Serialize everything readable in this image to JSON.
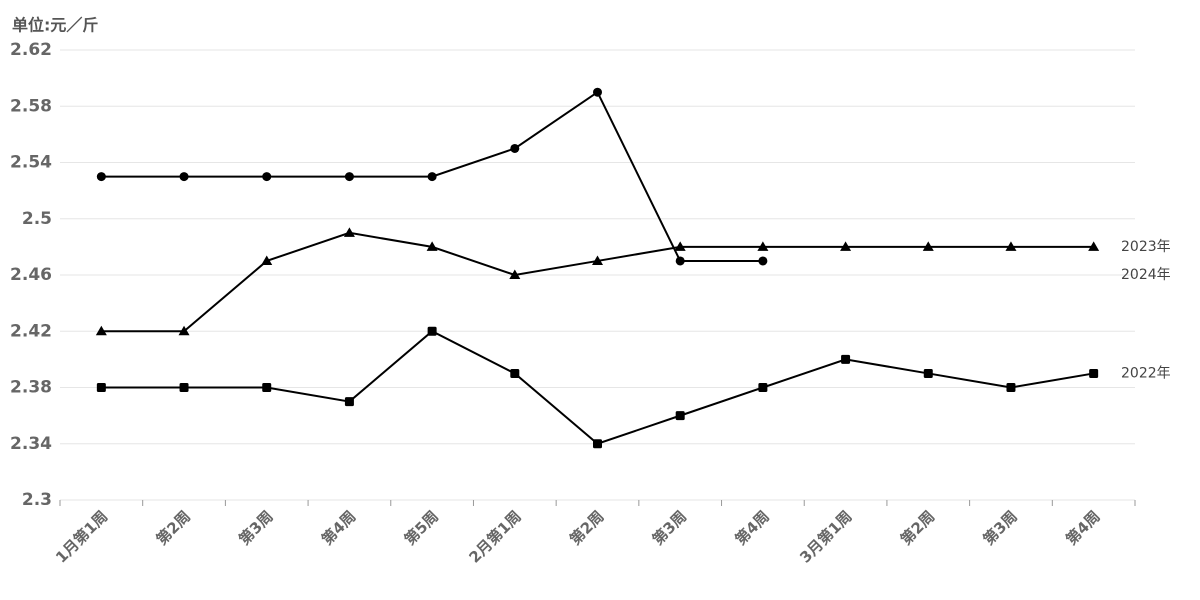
{
  "chart_data": {
    "type": "line",
    "y_axis_label": "单位:元／斤",
    "categories": [
      "1月第1周",
      "第2周",
      "第3周",
      "第4周",
      "第5周",
      "2月第1周",
      "第2周",
      "第3周",
      "第4周",
      "3月第1周",
      "第2周",
      "第3周",
      "第4周"
    ],
    "series": [
      {
        "name": "2023年",
        "color": "#000000",
        "marker": "triangle",
        "values": [
          2.42,
          2.42,
          2.47,
          2.49,
          2.48,
          2.46,
          2.47,
          2.48,
          2.48,
          2.48,
          2.48,
          2.48,
          2.48
        ]
      },
      {
        "name": "2024年",
        "color": "#000000",
        "marker": "circle",
        "values": [
          2.53,
          2.53,
          2.53,
          2.53,
          2.53,
          2.55,
          2.59,
          2.47,
          2.47,
          null,
          null,
          null,
          null
        ]
      },
      {
        "name": "2022年",
        "color": "#000000",
        "marker": "square",
        "values": [
          2.38,
          2.38,
          2.38,
          2.37,
          2.42,
          2.39,
          2.34,
          2.36,
          2.38,
          2.4,
          2.39,
          2.38,
          2.39
        ]
      }
    ],
    "ylim": [
      2.3,
      2.62
    ],
    "yticks": [
      2.3,
      2.34,
      2.38,
      2.42,
      2.46,
      2.5,
      2.54,
      2.58,
      2.62
    ],
    "grid": true
  }
}
